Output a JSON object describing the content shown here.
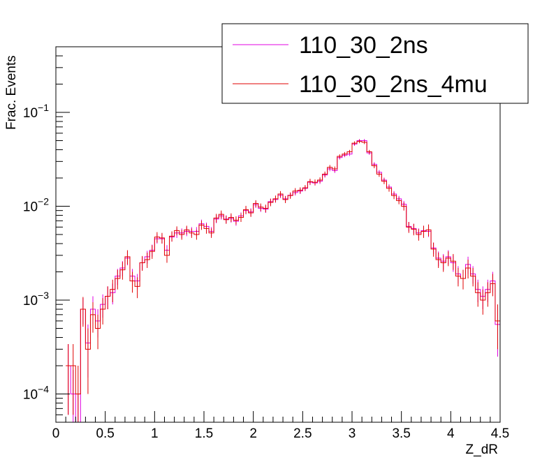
{
  "chart_data": {
    "type": "line",
    "histogram": true,
    "xlabel": "Z_dR",
    "ylabel": "Frac. Events",
    "xlim": [
      0,
      4.5
    ],
    "ylim": [
      5e-05,
      0.5
    ],
    "yscale": "log",
    "x_ticks": [
      "0",
      "0.5",
      "1",
      "1.5",
      "2",
      "2.5",
      "3",
      "3.5",
      "4",
      "4.5"
    ],
    "y_ticks": [
      {
        "mantissa": "10",
        "exp": "−4",
        "value": 0.0001
      },
      {
        "mantissa": "10",
        "exp": "−3",
        "value": 0.001
      },
      {
        "mantissa": "10",
        "exp": "−2",
        "value": 0.01
      },
      {
        "mantissa": "10",
        "exp": "−1",
        "value": 0.1
      }
    ],
    "bin_width": 0.05,
    "bin_low_edges": [
      0.1,
      0.15,
      0.2,
      0.25,
      0.3,
      0.35,
      0.4,
      0.45,
      0.5,
      0.55,
      0.6,
      0.65,
      0.7,
      0.75,
      0.8,
      0.85,
      0.9,
      0.95,
      1.0,
      1.05,
      1.1,
      1.15,
      1.2,
      1.25,
      1.3,
      1.35,
      1.4,
      1.45,
      1.5,
      1.55,
      1.6,
      1.65,
      1.7,
      1.75,
      1.8,
      1.85,
      1.9,
      1.95,
      2.0,
      2.05,
      2.1,
      2.15,
      2.2,
      2.25,
      2.3,
      2.35,
      2.4,
      2.45,
      2.5,
      2.55,
      2.6,
      2.65,
      2.7,
      2.75,
      2.8,
      2.85,
      2.9,
      2.95,
      3.0,
      3.05,
      3.1,
      3.15,
      3.2,
      3.25,
      3.3,
      3.35,
      3.4,
      3.45,
      3.5,
      3.55,
      3.6,
      3.65,
      3.7,
      3.75,
      3.8,
      3.85,
      3.9,
      3.95,
      4.0,
      4.05,
      4.1,
      4.15,
      4.2,
      4.25,
      4.3,
      4.35,
      4.4,
      4.45
    ],
    "series": [
      {
        "name": "110_30_2ns",
        "color": "#e000e0",
        "values": [
          0.0002,
          0.0001,
          5e-05,
          0.0008,
          0.00035,
          0.0008,
          0.0006,
          0.0009,
          0.0011,
          0.0012,
          0.0018,
          0.0022,
          0.0028,
          0.0018,
          0.0016,
          0.0025,
          0.0029,
          0.0034,
          0.0045,
          0.0045,
          0.0034,
          0.0047,
          0.0052,
          0.0052,
          0.0054,
          0.0054,
          0.0054,
          0.0065,
          0.0061,
          0.0054,
          0.0073,
          0.0079,
          0.0073,
          0.0074,
          0.0069,
          0.0079,
          0.009,
          0.0087,
          0.0104,
          0.0095,
          0.0093,
          0.0112,
          0.0118,
          0.0131,
          0.012,
          0.0131,
          0.014,
          0.0145,
          0.0155,
          0.018,
          0.0177,
          0.0185,
          0.0215,
          0.025,
          0.024,
          0.033,
          0.035,
          0.036,
          0.046,
          0.05,
          0.05,
          0.037,
          0.028,
          0.023,
          0.019,
          0.016,
          0.0135,
          0.012,
          0.0105,
          0.0061,
          0.0058,
          0.0052,
          0.0055,
          0.0054,
          0.0036,
          0.0028,
          0.0026,
          0.0029,
          0.0025,
          0.0019,
          0.0017,
          0.0024,
          0.0019,
          0.0013,
          0.0011,
          0.0013,
          0.0016,
          0.00055
        ],
        "errors": [
          0.00014,
          8e-05,
          5e-05,
          0.00025,
          0.0002,
          0.0003,
          0.0002,
          0.00025,
          0.0003,
          0.0003,
          0.00035,
          0.0004,
          0.00045,
          0.00035,
          0.0003,
          0.0004,
          0.00045,
          0.0005,
          0.0005,
          0.0005,
          0.00045,
          0.0005,
          0.0006,
          0.0006,
          0.0006,
          0.0006,
          0.0006,
          0.0007,
          0.0006,
          0.0006,
          0.0007,
          0.0007,
          0.0007,
          0.0007,
          0.0007,
          0.0007,
          0.0008,
          0.0008,
          0.0008,
          0.0008,
          0.0008,
          0.0009,
          0.0009,
          0.0009,
          0.0009,
          0.0009,
          0.001,
          0.001,
          0.001,
          0.0012,
          0.0011,
          0.0012,
          0.0013,
          0.0014,
          0.0014,
          0.0016,
          0.0017,
          0.0017,
          0.002,
          0.002,
          0.002,
          0.0017,
          0.0015,
          0.0013,
          0.0012,
          0.0011,
          0.001,
          0.0009,
          0.0009,
          0.0007,
          0.0007,
          0.0006,
          0.0007,
          0.0007,
          0.0005,
          0.0005,
          0.0005,
          0.0005,
          0.0005,
          0.0004,
          0.0004,
          0.0005,
          0.0004,
          0.00035,
          0.0003,
          0.00035,
          0.0004,
          0.0003
        ]
      },
      {
        "name": "110_30_2ns_4mu",
        "color": "#e00000",
        "values": [
          0.0002,
          0.0002,
          0.0001,
          0.0008,
          0.0003,
          0.0007,
          0.0005,
          0.0008,
          0.0011,
          0.0013,
          0.0017,
          0.0021,
          0.0029,
          0.0016,
          0.0014,
          0.0025,
          0.0027,
          0.0033,
          0.0047,
          0.0046,
          0.003,
          0.0048,
          0.0055,
          0.005,
          0.0056,
          0.0052,
          0.005,
          0.0063,
          0.0058,
          0.0052,
          0.0075,
          0.0082,
          0.0072,
          0.0076,
          0.0071,
          0.0076,
          0.0092,
          0.0085,
          0.0107,
          0.0098,
          0.0095,
          0.011,
          0.012,
          0.0135,
          0.0118,
          0.013,
          0.0145,
          0.0148,
          0.0157,
          0.0183,
          0.018,
          0.019,
          0.022,
          0.026,
          0.025,
          0.034,
          0.036,
          0.038,
          0.047,
          0.049,
          0.048,
          0.038,
          0.027,
          0.022,
          0.0185,
          0.0155,
          0.013,
          0.0115,
          0.01,
          0.006,
          0.0057,
          0.005,
          0.0054,
          0.0056,
          0.0035,
          0.0027,
          0.0025,
          0.0028,
          0.0026,
          0.0018,
          0.0017,
          0.0022,
          0.0018,
          0.0012,
          0.001,
          0.0012,
          0.0015,
          0.0006
        ],
        "errors": [
          0.00014,
          0.00014,
          0.0001,
          0.00028,
          0.0002,
          0.00025,
          0.0002,
          0.00025,
          0.0003,
          0.00035,
          0.0004,
          0.00045,
          0.0005,
          0.0004,
          0.00035,
          0.00045,
          0.0005,
          0.00055,
          0.0006,
          0.0006,
          0.0005,
          0.0006,
          0.0006,
          0.0006,
          0.0006,
          0.0006,
          0.0006,
          0.0007,
          0.0007,
          0.0006,
          0.0008,
          0.0008,
          0.0007,
          0.0008,
          0.0007,
          0.0008,
          0.0009,
          0.0008,
          0.0009,
          0.0009,
          0.0009,
          0.001,
          0.001,
          0.001,
          0.001,
          0.001,
          0.0011,
          0.0011,
          0.0011,
          0.0013,
          0.0013,
          0.0013,
          0.0014,
          0.0015,
          0.0015,
          0.0017,
          0.0018,
          0.0018,
          0.0021,
          0.0021,
          0.0021,
          0.0018,
          0.0016,
          0.0014,
          0.0013,
          0.0012,
          0.0011,
          0.001,
          0.001,
          0.0008,
          0.0008,
          0.0007,
          0.0008,
          0.0008,
          0.0006,
          0.0005,
          0.0005,
          0.0005,
          0.0005,
          0.0004,
          0.0004,
          0.0005,
          0.0004,
          0.00035,
          0.0003,
          0.00035,
          0.0004,
          0.0003
        ]
      }
    ],
    "legend": {
      "placement": "top-right",
      "entries": [
        "110_30_2ns",
        "110_30_2ns_4mu"
      ]
    }
  }
}
